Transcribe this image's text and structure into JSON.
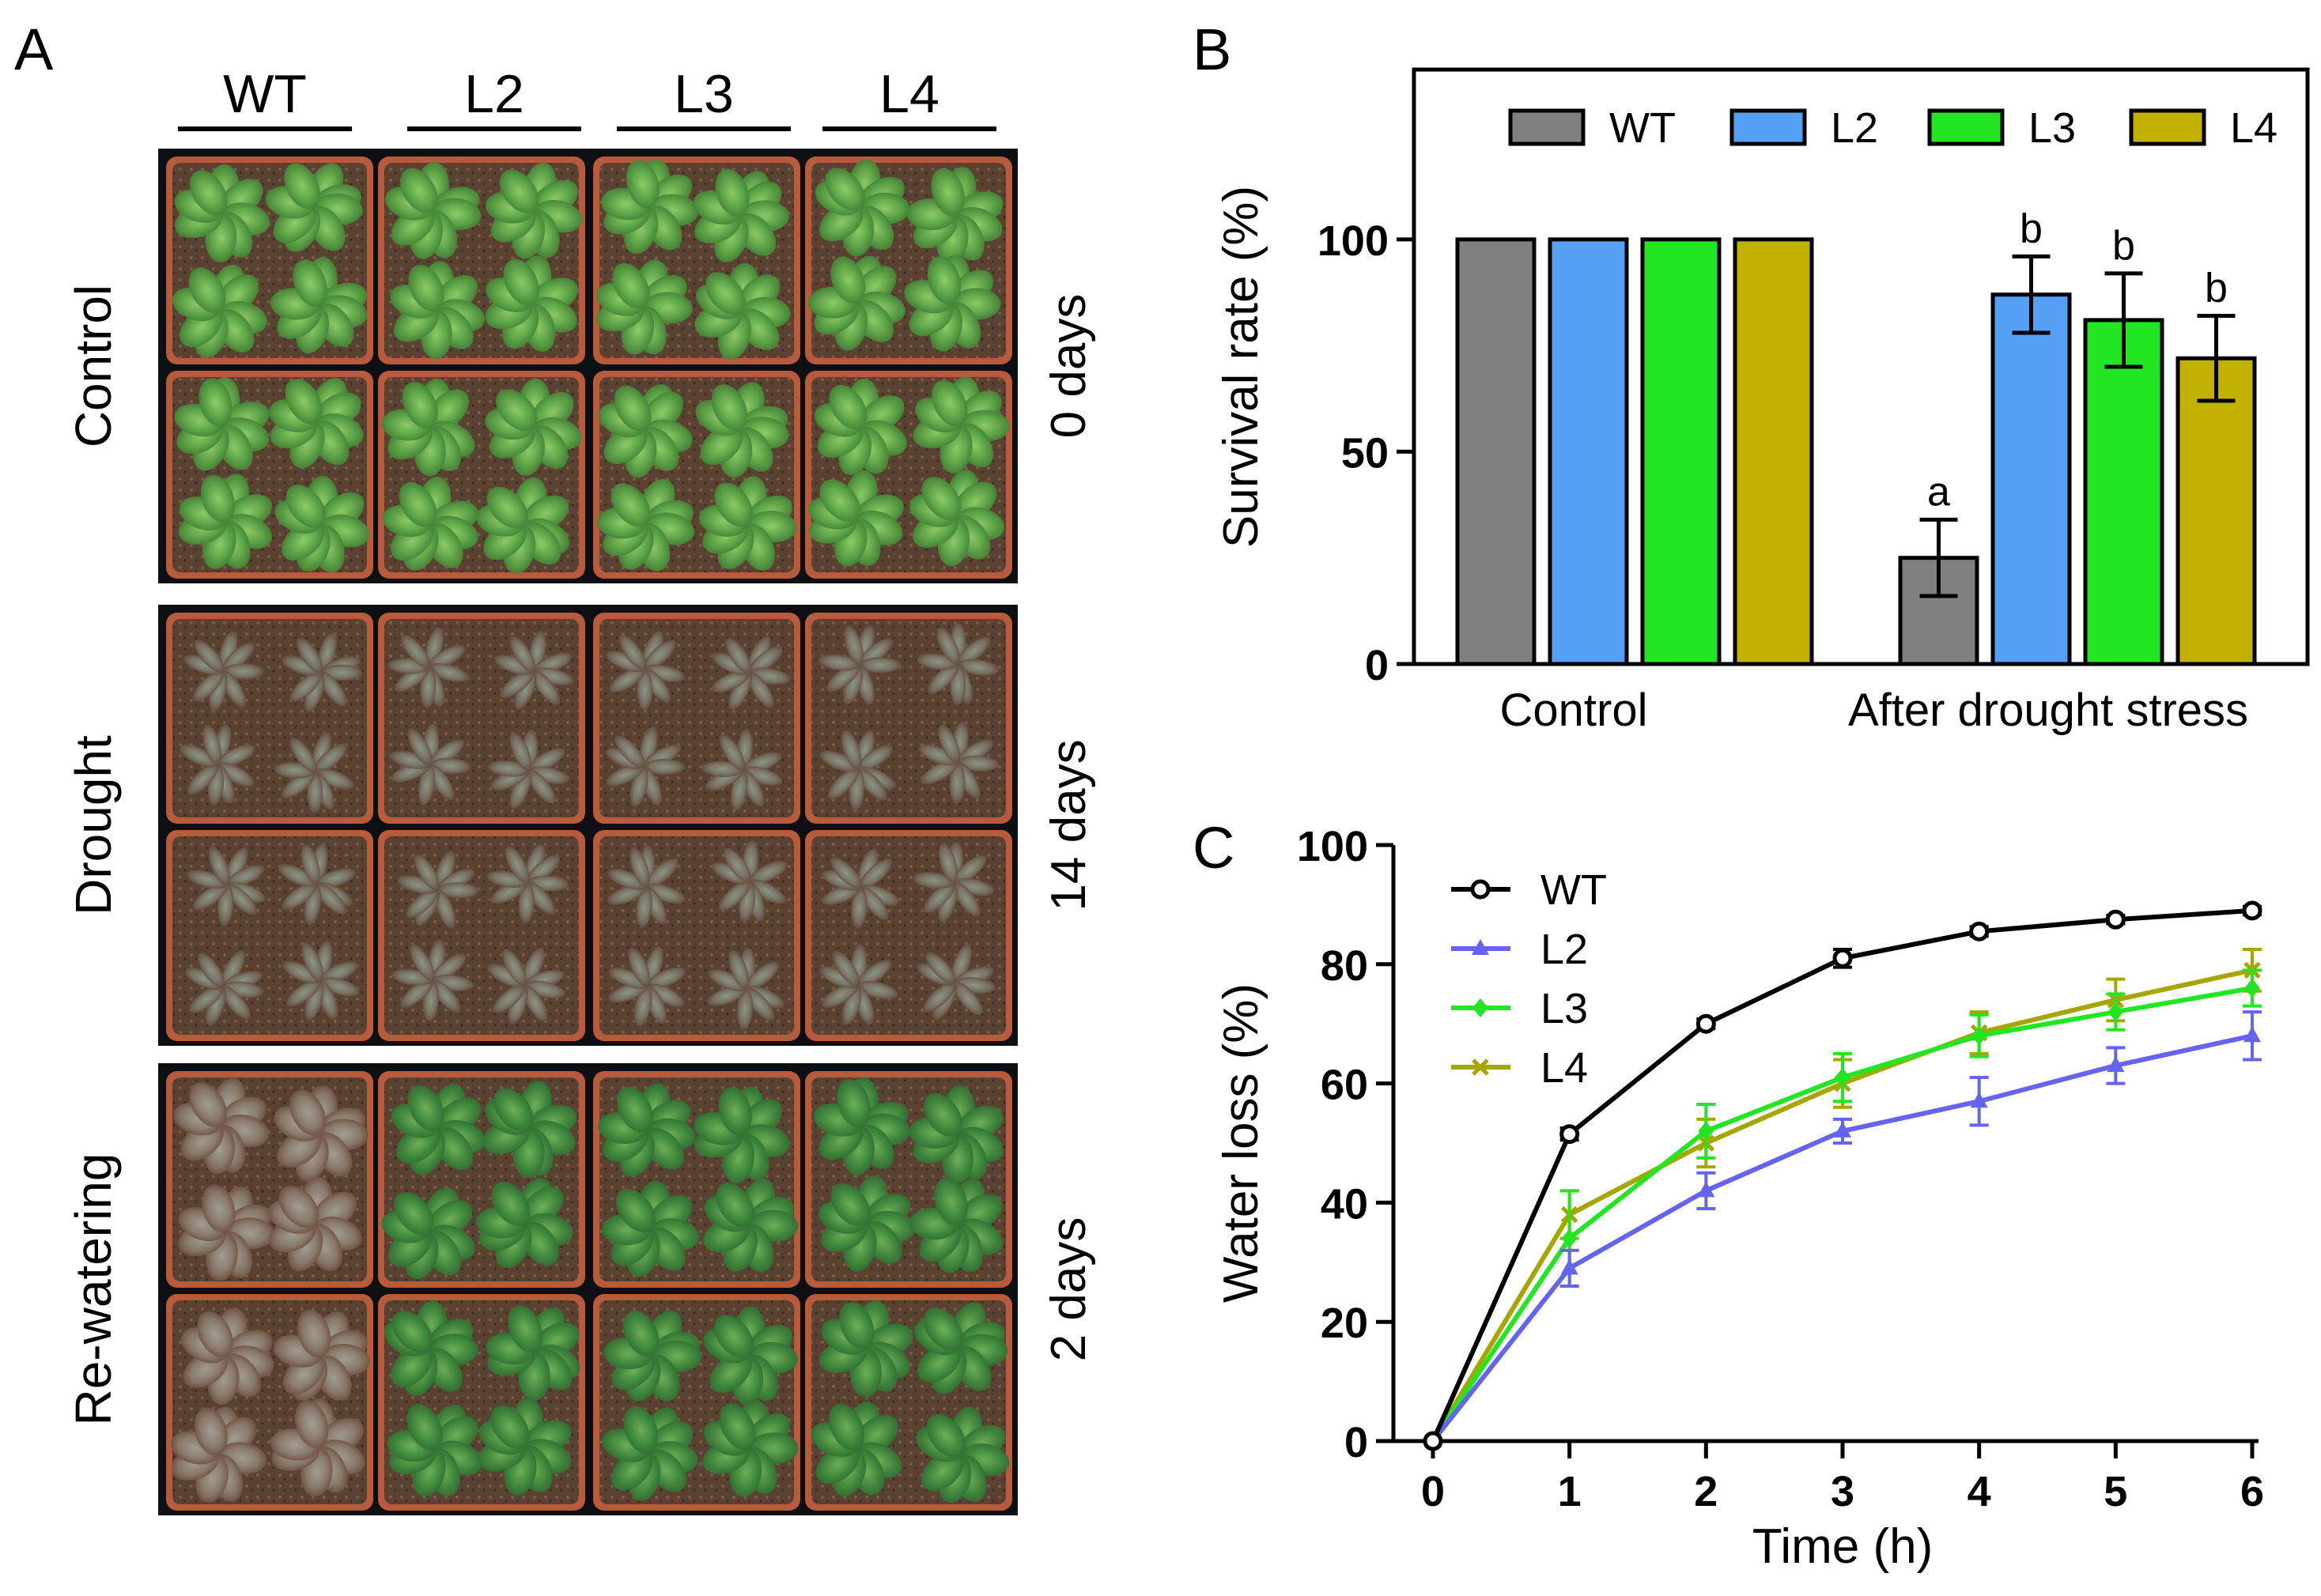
{
  "panels": {
    "a": {
      "letter": "A",
      "genotypes": [
        "WT",
        "L2",
        "L3",
        "L4"
      ],
      "rows": [
        {
          "condition": "Control",
          "duration": "0 days",
          "state": "healthy"
        },
        {
          "condition": "Drought",
          "duration": "14 days",
          "state": "drought"
        },
        {
          "condition": "Re-watering",
          "duration": "2 days",
          "state": "rewater"
        }
      ]
    },
    "b": {
      "letter": "B"
    },
    "c": {
      "letter": "C"
    }
  },
  "chart_data": [
    {
      "panel": "B",
      "type": "bar",
      "title": "",
      "xlabel": "",
      "ylabel": "Survival rate (%)",
      "ylim": [
        0,
        140
      ],
      "yticks": [
        0,
        50,
        100
      ],
      "categories": [
        "Control",
        "After drought stress"
      ],
      "legend_position": "top",
      "series": [
        {
          "name": "WT",
          "color": "#808080",
          "values": [
            100,
            25
          ],
          "errors": [
            0,
            9
          ],
          "letters": [
            "",
            "a"
          ]
        },
        {
          "name": "L2",
          "color": "#55a0f5",
          "values": [
            100,
            87
          ],
          "errors": [
            0,
            9
          ],
          "letters": [
            "",
            "b"
          ]
        },
        {
          "name": "L3",
          "color": "#22e622",
          "values": [
            100,
            81
          ],
          "errors": [
            0,
            11
          ],
          "letters": [
            "",
            "b"
          ]
        },
        {
          "name": "L4",
          "color": "#c2b100",
          "values": [
            100,
            72
          ],
          "errors": [
            0,
            10
          ],
          "letters": [
            "",
            "b"
          ]
        }
      ]
    },
    {
      "panel": "C",
      "type": "line",
      "title": "",
      "xlabel": "Time (h)",
      "ylabel": "Water loss (%)",
      "xlim": [
        0,
        6
      ],
      "ylim": [
        0,
        100
      ],
      "x": [
        0,
        1,
        2,
        3,
        4,
        5,
        6
      ],
      "xticks": [
        0,
        1,
        2,
        3,
        4,
        5,
        6
      ],
      "yticks": [
        0,
        20,
        40,
        60,
        80,
        100
      ],
      "legend_position": "top-left",
      "series": [
        {
          "name": "WT",
          "color": "#000000",
          "marker": "circle",
          "values": [
            0,
            51.5,
            70,
            81,
            85.5,
            87.5,
            89
          ],
          "errors": [
            0,
            1,
            0.8,
            1.5,
            0.8,
            0.7,
            0.7
          ]
        },
        {
          "name": "L2",
          "color": "#6464f0",
          "marker": "triangle",
          "values": [
            0,
            29,
            42,
            52,
            57,
            63,
            68
          ],
          "errors": [
            0,
            3,
            3,
            2,
            4,
            3,
            4
          ]
        },
        {
          "name": "L3",
          "color": "#22e622",
          "marker": "diamond",
          "values": [
            0,
            34,
            52,
            61,
            68,
            72,
            76
          ],
          "errors": [
            0,
            8,
            4.5,
            4,
            3.5,
            3,
            3
          ]
        },
        {
          "name": "L4",
          "color": "#a6a600",
          "marker": "cross",
          "values": [
            0,
            38,
            50,
            60,
            68.5,
            74,
            79
          ],
          "errors": [
            0,
            4,
            4,
            4,
            3.5,
            3.5,
            3.5
          ]
        }
      ]
    }
  ]
}
